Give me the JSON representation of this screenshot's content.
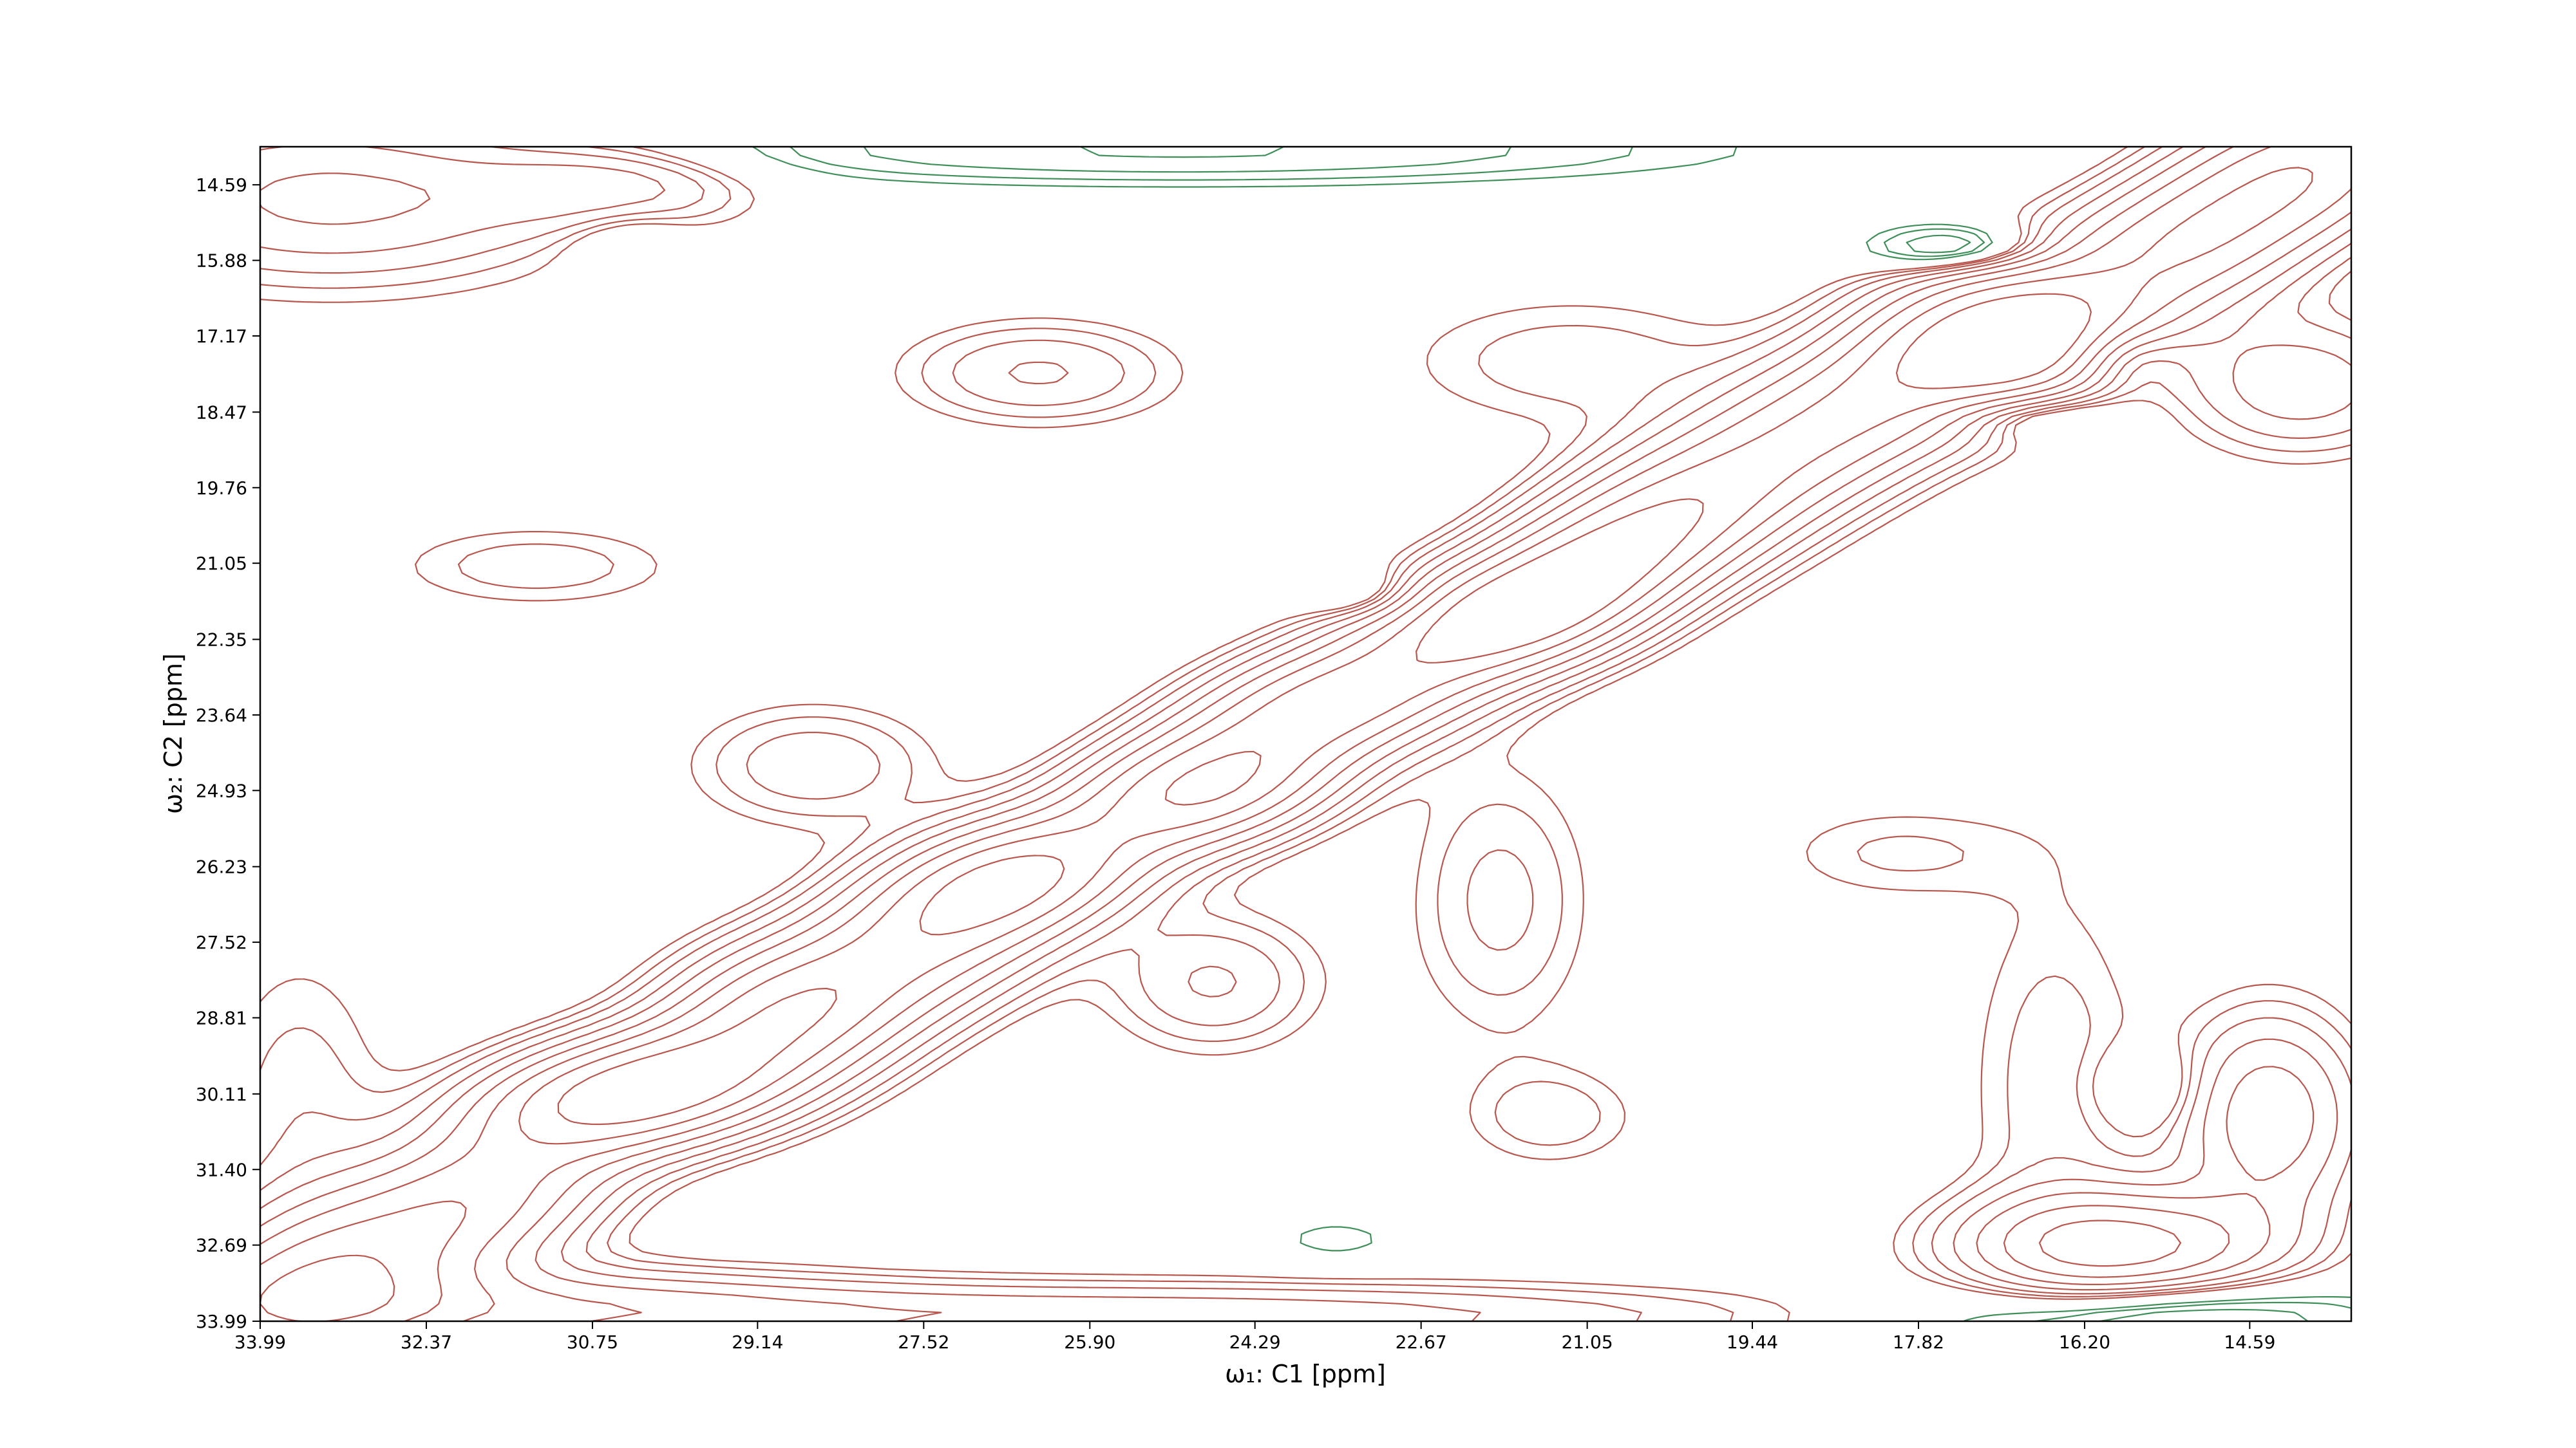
{
  "chart_data": {
    "type": "contour",
    "xlabel": "ω₁: C1 [ppm]",
    "ylabel": "ω₂: C2 [ppm]",
    "xlim": [
      33.99,
      13.6
    ],
    "ylim": [
      33.99,
      13.94
    ],
    "xticks": [
      33.99,
      32.37,
      30.75,
      29.14,
      27.52,
      {
        "value": 25.9,
        "label": "25.90"
      },
      24.29,
      22.67,
      21.05,
      19.44,
      17.82,
      {
        "value": 16.2,
        "label": "16.20"
      },
      14.59
    ],
    "yticks": [
      14.59,
      15.88,
      17.17,
      18.47,
      19.76,
      21.05,
      22.35,
      23.64,
      24.93,
      26.23,
      27.52,
      28.81,
      30.11,
      {
        "value": 31.4,
        "label": "31.40"
      },
      32.69,
      33.99
    ],
    "positive_color": "#b9574e",
    "negative_color": "#3f8f5a",
    "levels": [
      0.06,
      0.09,
      0.13,
      0.19,
      0.27,
      0.38,
      0.52,
      0.7,
      0.92
    ],
    "peaks": [
      [
        33.5,
        33.4,
        0.7,
        1.0,
        0.8,
        45
      ],
      [
        32.0,
        32.0,
        0.6,
        1.1,
        0.7,
        45
      ],
      [
        30.4,
        30.1,
        1.0,
        1.0,
        0.6,
        20
      ],
      [
        29.0,
        29.0,
        0.6,
        1.1,
        0.7,
        45
      ],
      [
        27.5,
        27.5,
        0.6,
        1.1,
        0.7,
        45
      ],
      [
        26.6,
        26.4,
        0.8,
        0.9,
        0.6,
        30
      ],
      [
        24.8,
        24.9,
        0.9,
        0.9,
        0.6,
        30
      ],
      [
        23.5,
        23.4,
        0.8,
        1.0,
        0.6,
        30
      ],
      [
        21.9,
        22.0,
        0.9,
        0.9,
        0.6,
        30
      ],
      [
        21.0,
        21.1,
        0.7,
        1.0,
        0.6,
        45
      ],
      [
        20.0,
        20.0,
        0.6,
        1.1,
        0.7,
        45
      ],
      [
        18.5,
        18.5,
        0.6,
        1.1,
        0.7,
        45
      ],
      [
        17.2,
        17.1,
        0.8,
        0.9,
        0.7,
        45
      ],
      [
        16.6,
        17.4,
        0.6,
        0.8,
        0.6,
        45
      ],
      [
        15.3,
        15.7,
        0.6,
        1.0,
        0.7,
        45
      ],
      [
        14.0,
        14.3,
        0.6,
        1.0,
        0.7,
        45
      ],
      [
        26.4,
        17.8,
        0.2,
        0.9,
        0.6,
        0
      ],
      [
        28.6,
        24.5,
        0.18,
        0.8,
        0.7,
        0
      ],
      [
        31.3,
        21.1,
        0.12,
        1.0,
        0.5,
        0
      ],
      [
        24.7,
        28.2,
        0.2,
        0.7,
        0.8,
        0
      ],
      [
        21.4,
        30.5,
        0.12,
        0.6,
        0.6,
        0
      ],
      [
        28.9,
        28.5,
        0.2,
        0.7,
        0.7,
        0
      ],
      [
        14.1,
        18.0,
        0.25,
        0.8,
        0.8,
        0
      ],
      [
        21.9,
        26.8,
        0.15,
        0.6,
        1.6,
        0
      ],
      [
        15.9,
        32.7,
        0.6,
        1.0,
        0.6,
        0
      ],
      [
        14.4,
        30.5,
        0.35,
        0.6,
        1.2,
        0
      ],
      [
        16.5,
        30.0,
        0.12,
        0.6,
        2.5,
        0
      ],
      [
        33.3,
        14.8,
        0.3,
        1.6,
        1.0,
        0
      ],
      [
        30.5,
        14.6,
        0.2,
        0.9,
        0.5,
        0
      ],
      [
        32.0,
        33.8,
        0.35,
        2.5,
        0.5,
        0
      ],
      [
        25.0,
        33.9,
        0.25,
        4.0,
        0.4,
        0
      ],
      [
        33.6,
        30.5,
        0.12,
        0.6,
        2.0,
        0
      ],
      [
        21.2,
        17.6,
        0.12,
        1.2,
        0.8,
        0
      ],
      [
        18.0,
        26.0,
        0.1,
        0.9,
        0.6,
        0
      ],
      [
        17.4,
        15.7,
        -0.3,
        0.6,
        0.3,
        0
      ],
      [
        15.9,
        17.5,
        -0.25,
        0.4,
        0.4,
        0
      ],
      [
        16.8,
        18.5,
        -0.25,
        0.6,
        0.3,
        0
      ],
      [
        23.2,
        21.6,
        -0.15,
        0.4,
        0.3,
        0
      ],
      [
        30.4,
        15.6,
        -0.1,
        0.4,
        0.4,
        0
      ],
      [
        25.0,
        14.0,
        -0.2,
        3.5,
        0.4,
        0
      ],
      [
        15.6,
        33.9,
        -0.25,
        1.6,
        0.4,
        0
      ],
      [
        15.6,
        30.0,
        -0.1,
        0.4,
        0.5,
        0
      ],
      [
        23.5,
        32.6,
        -0.08,
        0.5,
        0.3,
        0
      ]
    ]
  }
}
